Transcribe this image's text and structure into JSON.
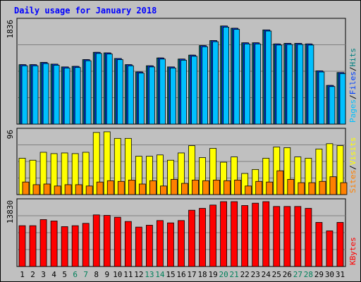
{
  "chart_data": {
    "type": "bar",
    "title": "Daily usage for January 2018",
    "categories": [
      "1",
      "2",
      "3",
      "4",
      "5",
      "6",
      "7",
      "8",
      "9",
      "10",
      "11",
      "12",
      "13",
      "14",
      "15",
      "16",
      "17",
      "18",
      "19",
      "20",
      "21",
      "22",
      "23",
      "24",
      "25",
      "26",
      "27",
      "28",
      "29",
      "30",
      "31"
    ],
    "weekend_days": [
      6,
      7,
      13,
      14,
      20,
      21,
      27,
      28
    ],
    "panels": [
      {
        "id": "pages-files-hits",
        "ymax_label": "1836",
        "ymax": 1836,
        "legend": [
          {
            "text": "Pages",
            "color": "#00c0ff"
          },
          {
            "text": "/",
            "color": "#000000"
          },
          {
            "text": "Files",
            "color": "#0040ff"
          },
          {
            "text": "/",
            "color": "#000000"
          },
          {
            "text": "Hits",
            "color": "#008080"
          }
        ],
        "series": [
          {
            "name": "Hits",
            "color": "#008080",
            "values": [
              1060,
              1060,
              1100,
              1070,
              1020,
              1030,
              1150,
              1280,
              1270,
              1170,
              1060,
              930,
              1040,
              1180,
              1020,
              1160,
              1230,
              1400,
              1490,
              1750,
              1710,
              1450,
              1450,
              1680,
              1430,
              1440,
              1440,
              1430,
              950,
              690,
              920
            ]
          },
          {
            "name": "Files",
            "color": "#0040ff",
            "values": [
              1060,
              1060,
              1100,
              1070,
              1020,
              1030,
              1150,
              1280,
              1270,
              1170,
              1060,
              930,
              1040,
              1180,
              1020,
              1160,
              1230,
              1400,
              1490,
              1750,
              1710,
              1450,
              1450,
              1680,
              1430,
              1440,
              1440,
              1430,
              950,
              690,
              920
            ]
          },
          {
            "name": "Pages",
            "color": "#00c0ff",
            "values": [
              1040,
              1040,
              1080,
              1050,
              1000,
              1010,
              1130,
              1260,
              1250,
              1150,
              1040,
              910,
              1020,
              1160,
              1000,
              1140,
              1210,
              1380,
              1470,
              1730,
              1690,
              1430,
              1430,
              1660,
              1410,
              1420,
              1420,
              1410,
              930,
              670,
              900
            ]
          }
        ]
      },
      {
        "id": "visits-sites",
        "ymax_label": "96",
        "ymax": 96,
        "legend": [
          {
            "text": "Sites",
            "color": "#ff8000"
          },
          {
            "text": "/",
            "color": "#000000"
          },
          {
            "text": "Visits",
            "color": "#ffff00"
          }
        ],
        "series": [
          {
            "name": "Visits",
            "color": "#ffff00",
            "values": [
              55,
              52,
              64,
              62,
              63,
              62,
              64,
              94,
              95,
              85,
              85,
              58,
              58,
              60,
              52,
              63,
              74,
              56,
              70,
              49,
              57,
              32,
              38,
              55,
              72,
              71,
              57,
              55,
              69,
              77,
              74
            ]
          },
          {
            "name": "Sites",
            "color": "#ff8000",
            "values": [
              19,
              15,
              16,
              13,
              15,
              15,
              13,
              19,
              21,
              20,
              22,
              16,
              21,
              13,
              23,
              17,
              22,
              21,
              22,
              21,
              22,
              13,
              20,
              19,
              36,
              23,
              18,
              18,
              20,
              27,
              18
            ]
          }
        ]
      },
      {
        "id": "kbytes",
        "ymax_label": "13830",
        "ymax": 13830,
        "legend": [
          {
            "text": "KBytes",
            "color": "#ff0000"
          }
        ],
        "series": [
          {
            "name": "KBytes",
            "color": "#ff0000",
            "values": [
              8700,
              8700,
              10000,
              9700,
              8500,
              8700,
              9200,
              11000,
              10900,
              10500,
              9600,
              8400,
              8800,
              9800,
              9300,
              9800,
              12000,
              12400,
              13100,
              14300,
              14300,
              13000,
              13500,
              14000,
              12800,
              12800,
              12800,
              12400,
              9400,
              7600,
              9400
            ]
          }
        ]
      }
    ]
  }
}
